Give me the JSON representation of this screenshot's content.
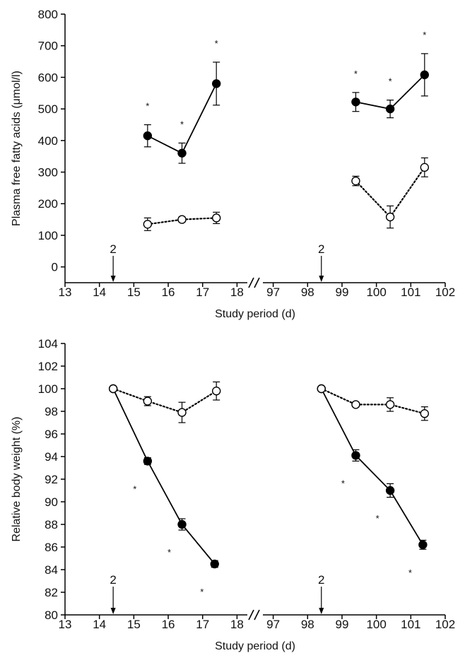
{
  "chart_data": [
    {
      "type": "line",
      "xlabel": "Study period (d)",
      "ylabel": "Plasma free fatty acids (μmol/l)",
      "ylim": [
        -50,
        800
      ],
      "yticks": [
        0,
        100,
        200,
        300,
        400,
        500,
        600,
        700,
        800
      ],
      "x_segments": [
        {
          "xlim": [
            13,
            18.3
          ],
          "ticks": [
            13,
            14,
            15,
            16,
            17,
            18
          ]
        },
        {
          "xlim": [
            96.7,
            102
          ],
          "ticks": [
            97,
            98,
            99,
            100,
            101,
            102
          ]
        }
      ],
      "axis_break": true,
      "annotations": [
        {
          "label": "2",
          "x": 14.4,
          "arrow": "down"
        },
        {
          "label": "2",
          "x": 98.4,
          "arrow": "down"
        }
      ],
      "significance_marker": "*",
      "series": [
        {
          "marker": "filled-circle",
          "line": "solid",
          "groups": [
            {
              "x": [
                15.4,
                16.4,
                17.4
              ],
              "y": [
                415,
                360,
                580
              ],
              "err": [
                35,
                32,
                68
              ],
              "sig": [
                true,
                true,
                true
              ]
            },
            {
              "x": [
                99.4,
                100.4,
                101.4
              ],
              "y": [
                522,
                500,
                608
              ],
              "err": [
                30,
                28,
                67
              ],
              "sig": [
                true,
                true,
                true
              ]
            }
          ]
        },
        {
          "marker": "open-circle",
          "line": "dotted",
          "groups": [
            {
              "x": [
                15.4,
                16.4,
                17.4
              ],
              "y": [
                135,
                150,
                155
              ],
              "err": [
                20,
                8,
                18
              ],
              "sig": [
                false,
                false,
                false
              ]
            },
            {
              "x": [
                99.4,
                100.4,
                101.4
              ],
              "y": [
                272,
                158,
                315
              ],
              "err": [
                15,
                35,
                30
              ],
              "sig": [
                false,
                false,
                false
              ]
            }
          ]
        }
      ]
    },
    {
      "type": "line",
      "xlabel": "Study period (d)",
      "ylabel": "Relative body weight (%)",
      "ylim": [
        80,
        104
      ],
      "yticks": [
        80,
        82,
        84,
        86,
        88,
        90,
        92,
        94,
        96,
        98,
        100,
        102,
        104
      ],
      "x_segments": [
        {
          "xlim": [
            13,
            18.3
          ],
          "ticks": [
            13,
            14,
            15,
            16,
            17,
            18
          ]
        },
        {
          "xlim": [
            96.7,
            102
          ],
          "ticks": [
            97,
            98,
            99,
            100,
            101,
            102
          ]
        }
      ],
      "axis_break": true,
      "annotations": [
        {
          "label": "2",
          "x": 14.4,
          "arrow": "down"
        },
        {
          "label": "2",
          "x": 98.4,
          "arrow": "down"
        }
      ],
      "significance_marker": "*",
      "series": [
        {
          "marker": "filled-circle",
          "line": "solid",
          "groups": [
            {
              "x": [
                14.4,
                15.4,
                16.4,
                17.35
              ],
              "y": [
                100,
                93.6,
                88.0,
                84.5
              ],
              "err": [
                0,
                0.3,
                0.5,
                0.3
              ],
              "sig": [
                false,
                true,
                true,
                true
              ]
            },
            {
              "x": [
                98.4,
                99.4,
                100.4,
                101.35
              ],
              "y": [
                100,
                94.1,
                91.0,
                86.2
              ],
              "err": [
                0,
                0.5,
                0.6,
                0.4
              ],
              "sig": [
                false,
                true,
                true,
                true
              ]
            }
          ]
        },
        {
          "marker": "open-circle",
          "line": "dotted",
          "groups": [
            {
              "x": [
                14.4,
                15.4,
                16.4,
                17.4
              ],
              "y": [
                100,
                98.9,
                97.9,
                99.8
              ],
              "err": [
                0,
                0.4,
                0.9,
                0.8
              ],
              "sig": [
                false,
                false,
                false,
                false
              ]
            },
            {
              "x": [
                98.4,
                99.4,
                100.4,
                101.4
              ],
              "y": [
                100,
                98.6,
                98.6,
                97.8
              ],
              "err": [
                0,
                0.2,
                0.6,
                0.6
              ],
              "sig": [
                false,
                false,
                false,
                false
              ]
            }
          ]
        }
      ]
    }
  ]
}
